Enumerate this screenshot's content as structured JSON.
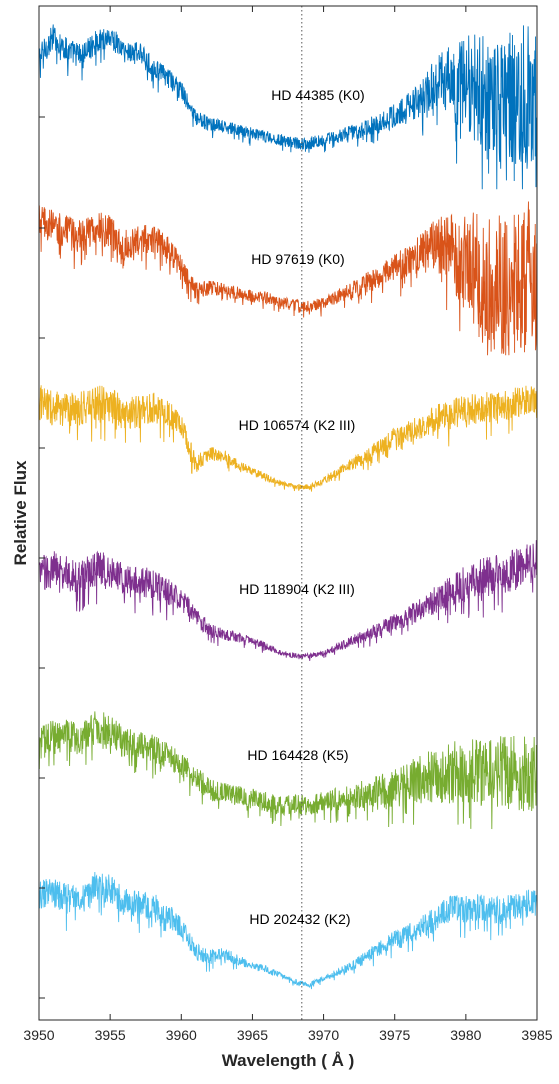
{
  "chart_data": {
    "type": "line",
    "xlabel": "Wavelength ( Å )",
    "ylabel": "Relative Flux",
    "xlim": [
      3950,
      3985
    ],
    "x_ticks": [
      "3950",
      "3955",
      "3960",
      "3965",
      "3970",
      "3975",
      "3980",
      "3985"
    ],
    "y_tick_labels_shown": false,
    "reference_line": {
      "x": 3968.47,
      "style": "dotted",
      "color": "#595959"
    },
    "grid": false,
    "legend": "none",
    "series": [
      {
        "name": "HD 44385 (K0)",
        "color": "#0072BD",
        "shape_x": [
          3950,
          3951,
          3952,
          3953,
          3954,
          3955,
          3956,
          3957,
          3958,
          3959,
          3960,
          3961,
          3962,
          3963,
          3964,
          3965,
          3966,
          3967,
          3968,
          3969,
          3970,
          3971,
          3972,
          3973,
          3974,
          3975,
          3976,
          3977,
          3978,
          3979,
          3980,
          3981,
          3982,
          3983,
          3984,
          3985
        ],
        "shape_y": [
          0.72,
          0.86,
          0.77,
          0.74,
          0.82,
          0.86,
          0.76,
          0.76,
          0.66,
          0.6,
          0.52,
          0.34,
          0.3,
          0.28,
          0.26,
          0.24,
          0.22,
          0.2,
          0.18,
          0.18,
          0.2,
          0.22,
          0.25,
          0.28,
          0.32,
          0.36,
          0.42,
          0.5,
          0.6,
          0.62,
          0.64,
          0.6,
          0.5,
          0.58,
          0.6,
          0.62
        ],
        "noise": [
          0.1,
          0.1,
          0.1,
          0.1,
          0.09,
          0.09,
          0.09,
          0.08,
          0.08,
          0.08,
          0.07,
          0.06,
          0.06,
          0.05,
          0.05,
          0.05,
          0.05,
          0.05,
          0.05,
          0.05,
          0.05,
          0.05,
          0.06,
          0.07,
          0.08,
          0.1,
          0.12,
          0.16,
          0.22,
          0.3,
          0.38,
          0.45,
          0.5,
          0.52,
          0.55,
          0.55
        ]
      },
      {
        "name": "HD 97619 (K0)",
        "color": "#D95319",
        "shape_x": [
          3950,
          3951,
          3952,
          3953,
          3954,
          3955,
          3956,
          3957,
          3958,
          3959,
          3960,
          3961,
          3962,
          3963,
          3964,
          3965,
          3966,
          3967,
          3968,
          3969,
          3970,
          3971,
          3972,
          3973,
          3974,
          3975,
          3976,
          3977,
          3978,
          3979,
          3980,
          3981,
          3982,
          3983,
          3984,
          3985
        ],
        "shape_y": [
          0.75,
          0.72,
          0.68,
          0.65,
          0.72,
          0.68,
          0.6,
          0.62,
          0.64,
          0.58,
          0.45,
          0.3,
          0.32,
          0.3,
          0.28,
          0.26,
          0.25,
          0.22,
          0.2,
          0.2,
          0.22,
          0.26,
          0.3,
          0.35,
          0.4,
          0.45,
          0.5,
          0.56,
          0.62,
          0.6,
          0.55,
          0.5,
          0.45,
          0.48,
          0.5,
          0.52
        ],
        "noise": [
          0.14,
          0.14,
          0.14,
          0.13,
          0.13,
          0.13,
          0.12,
          0.12,
          0.11,
          0.1,
          0.09,
          0.07,
          0.06,
          0.05,
          0.05,
          0.05,
          0.05,
          0.05,
          0.05,
          0.05,
          0.05,
          0.06,
          0.07,
          0.08,
          0.09,
          0.11,
          0.13,
          0.16,
          0.22,
          0.3,
          0.4,
          0.5,
          0.55,
          0.6,
          0.6,
          0.6
        ]
      },
      {
        "name": "HD 106574 (K2 III)",
        "color": "#EDB120",
        "shape_x": [
          3950,
          3951,
          3952,
          3953,
          3954,
          3955,
          3956,
          3957,
          3958,
          3959,
          3960,
          3961,
          3962,
          3963,
          3964,
          3965,
          3966,
          3967,
          3968,
          3969,
          3970,
          3971,
          3972,
          3973,
          3974,
          3975,
          3976,
          3977,
          3978,
          3979,
          3980,
          3981,
          3982,
          3983,
          3984,
          3985
        ],
        "shape_y": [
          0.66,
          0.62,
          0.6,
          0.62,
          0.66,
          0.64,
          0.58,
          0.6,
          0.62,
          0.58,
          0.52,
          0.25,
          0.32,
          0.3,
          0.24,
          0.2,
          0.16,
          0.12,
          0.1,
          0.1,
          0.14,
          0.2,
          0.25,
          0.3,
          0.36,
          0.42,
          0.46,
          0.5,
          0.55,
          0.58,
          0.6,
          0.62,
          0.62,
          0.64,
          0.66,
          0.68
        ],
        "noise": [
          0.14,
          0.14,
          0.14,
          0.14,
          0.14,
          0.14,
          0.13,
          0.13,
          0.12,
          0.11,
          0.1,
          0.07,
          0.06,
          0.05,
          0.04,
          0.03,
          0.03,
          0.02,
          0.02,
          0.02,
          0.03,
          0.04,
          0.05,
          0.06,
          0.07,
          0.08,
          0.09,
          0.1,
          0.11,
          0.12,
          0.12,
          0.12,
          0.12,
          0.12,
          0.12,
          0.12
        ]
      },
      {
        "name": "HD 118904 (K2 III)",
        "color": "#7E2F8E",
        "shape_x": [
          3950,
          3951,
          3952,
          3953,
          3954,
          3955,
          3956,
          3957,
          3958,
          3959,
          3960,
          3961,
          3962,
          3963,
          3964,
          3965,
          3966,
          3967,
          3968,
          3969,
          3970,
          3971,
          3972,
          3973,
          3974,
          3975,
          3976,
          3977,
          3978,
          3979,
          3980,
          3981,
          3982,
          3983,
          3984,
          3985
        ],
        "shape_y": [
          0.62,
          0.66,
          0.62,
          0.6,
          0.66,
          0.64,
          0.58,
          0.56,
          0.56,
          0.5,
          0.45,
          0.35,
          0.25,
          0.22,
          0.2,
          0.18,
          0.14,
          0.1,
          0.08,
          0.08,
          0.1,
          0.14,
          0.18,
          0.22,
          0.26,
          0.3,
          0.34,
          0.4,
          0.46,
          0.52,
          0.56,
          0.6,
          0.62,
          0.64,
          0.68,
          0.72
        ],
        "noise": [
          0.14,
          0.14,
          0.14,
          0.14,
          0.14,
          0.13,
          0.13,
          0.12,
          0.12,
          0.11,
          0.1,
          0.08,
          0.06,
          0.05,
          0.04,
          0.03,
          0.03,
          0.02,
          0.02,
          0.02,
          0.02,
          0.03,
          0.04,
          0.05,
          0.06,
          0.07,
          0.08,
          0.09,
          0.11,
          0.13,
          0.14,
          0.15,
          0.16,
          0.16,
          0.16,
          0.16
        ]
      },
      {
        "name": "HD 164428 (K5)",
        "color": "#77AC30",
        "shape_x": [
          3950,
          3951,
          3952,
          3953,
          3954,
          3955,
          3956,
          3957,
          3958,
          3959,
          3960,
          3961,
          3962,
          3963,
          3964,
          3965,
          3966,
          3967,
          3968,
          3969,
          3970,
          3971,
          3972,
          3973,
          3974,
          3975,
          3976,
          3977,
          3978,
          3979,
          3980,
          3981,
          3982,
          3983,
          3984,
          3985
        ],
        "shape_y": [
          0.6,
          0.66,
          0.64,
          0.62,
          0.7,
          0.68,
          0.6,
          0.58,
          0.56,
          0.52,
          0.46,
          0.38,
          0.3,
          0.28,
          0.26,
          0.24,
          0.22,
          0.2,
          0.2,
          0.2,
          0.22,
          0.24,
          0.26,
          0.28,
          0.3,
          0.32,
          0.36,
          0.4,
          0.42,
          0.44,
          0.46,
          0.46,
          0.46,
          0.46,
          0.46,
          0.46
        ],
        "noise": [
          0.12,
          0.12,
          0.13,
          0.13,
          0.13,
          0.13,
          0.12,
          0.11,
          0.11,
          0.1,
          0.1,
          0.09,
          0.09,
          0.08,
          0.08,
          0.08,
          0.08,
          0.08,
          0.08,
          0.08,
          0.08,
          0.09,
          0.1,
          0.11,
          0.13,
          0.15,
          0.17,
          0.2,
          0.22,
          0.24,
          0.26,
          0.28,
          0.3,
          0.3,
          0.3,
          0.3
        ]
      },
      {
        "name": "HD 202432 (K2)",
        "color": "#4DBEEE",
        "shape_x": [
          3950,
          3951,
          3952,
          3953,
          3954,
          3955,
          3956,
          3957,
          3958,
          3959,
          3960,
          3961,
          3962,
          3963,
          3964,
          3965,
          3966,
          3967,
          3968,
          3969,
          3970,
          3971,
          3972,
          3973,
          3974,
          3975,
          3976,
          3977,
          3978,
          3979,
          3980,
          3981,
          3982,
          3983,
          3984,
          3985
        ],
        "shape_y": [
          0.68,
          0.7,
          0.66,
          0.66,
          0.74,
          0.72,
          0.64,
          0.62,
          0.62,
          0.56,
          0.48,
          0.32,
          0.28,
          0.3,
          0.26,
          0.22,
          0.2,
          0.16,
          0.12,
          0.1,
          0.14,
          0.18,
          0.22,
          0.28,
          0.34,
          0.4,
          0.44,
          0.48,
          0.54,
          0.6,
          0.6,
          0.6,
          0.58,
          0.6,
          0.62,
          0.64
        ],
        "noise": [
          0.12,
          0.12,
          0.12,
          0.12,
          0.12,
          0.12,
          0.11,
          0.11,
          0.1,
          0.1,
          0.09,
          0.07,
          0.06,
          0.05,
          0.04,
          0.03,
          0.03,
          0.02,
          0.02,
          0.02,
          0.02,
          0.03,
          0.04,
          0.05,
          0.06,
          0.07,
          0.08,
          0.09,
          0.1,
          0.11,
          0.11,
          0.11,
          0.11,
          0.11,
          0.11,
          0.11
        ]
      }
    ]
  }
}
